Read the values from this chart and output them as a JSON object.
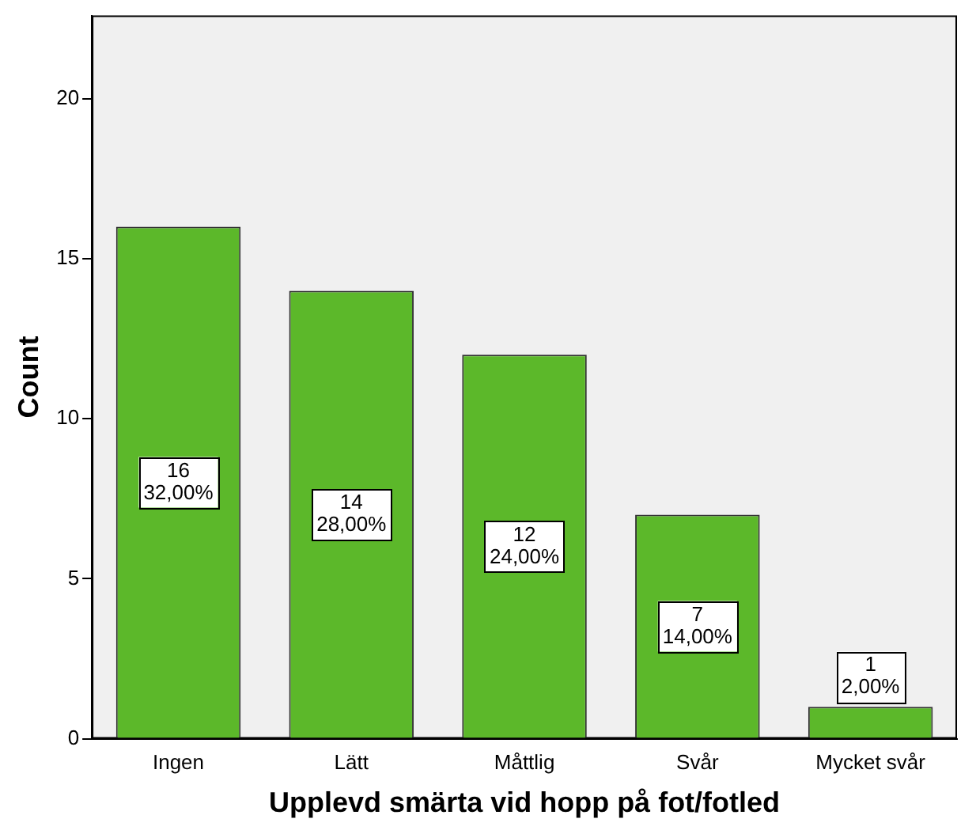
{
  "chart_data": {
    "type": "bar",
    "xlabel": "Upplevd smärta vid hopp på fot/fotled",
    "ylabel": "Count",
    "categories": [
      "Ingen",
      "Lätt",
      "Måttlig",
      "Svår",
      "Mycket svår"
    ],
    "values": [
      16,
      14,
      12,
      7,
      1
    ],
    "color": "#5cb82a",
    "value_labels": [
      "16\n32,00%",
      "14\n28,00%",
      "12\n24,00%",
      "7\n14,00%",
      "1\n2,00%"
    ],
    "ylim": [
      0,
      22.6
    ],
    "yticks": [
      0,
      5,
      10,
      15,
      20
    ],
    "grid": false,
    "legend": false
  }
}
